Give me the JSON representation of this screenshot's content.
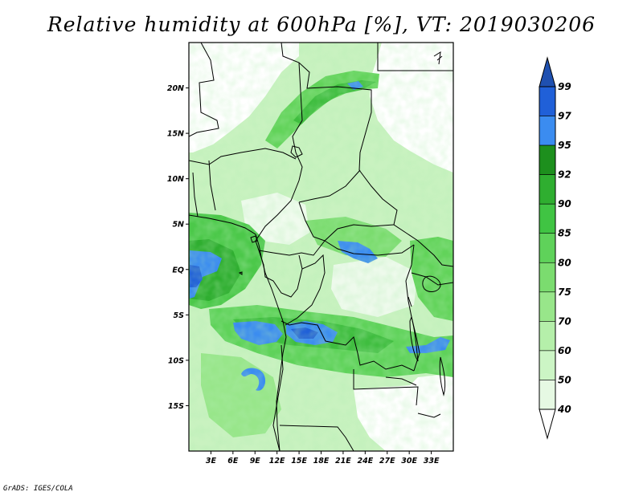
{
  "title": "Relative humidity at 600hPa [%], VT: 2019030206",
  "credit": "GrADS: IGES/COLA",
  "chart_data": {
    "type": "heatmap",
    "field": "relative_humidity",
    "level": "600hPa",
    "units": "%",
    "valid_time": "2019030206",
    "lon_range": [
      0,
      36
    ],
    "lat_range": [
      -20,
      25
    ],
    "x_ticks": [
      "3E",
      "6E",
      "9E",
      "12E",
      "15E",
      "18E",
      "21E",
      "24E",
      "27E",
      "30E",
      "33E"
    ],
    "y_ticks": [
      "20N",
      "15N",
      "10N",
      "5N",
      "EQ",
      "5S",
      "10S",
      "15S"
    ],
    "colorbar": {
      "levels": [
        40,
        50,
        60,
        70,
        75,
        80,
        85,
        90,
        92,
        95,
        97,
        99
      ],
      "colors": [
        "#ffffff",
        "#e6f9e3",
        "#ccf5c5",
        "#b5efaa",
        "#98e68a",
        "#7bdc6f",
        "#5fd25a",
        "#40c443",
        "#2fae30",
        "#1d8f1d",
        "#3b8cf0",
        "#2060d8",
        "#1f50b0"
      ]
    }
  }
}
